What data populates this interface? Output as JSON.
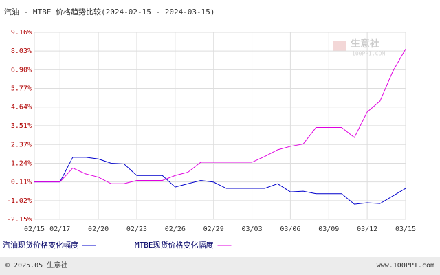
{
  "chart_data": {
    "type": "line",
    "title": "汽油 - MTBE 价格趋势比较(2024-02-15 - 2024-03-15)",
    "x": [
      "02/15",
      "02/16",
      "02/17",
      "02/18",
      "02/19",
      "02/20",
      "02/21",
      "02/22",
      "02/23",
      "02/24",
      "02/25",
      "02/26",
      "02/27",
      "02/28",
      "02/29",
      "03/01",
      "03/02",
      "03/03",
      "03/04",
      "03/05",
      "03/06",
      "03/07",
      "03/08",
      "03/09",
      "03/10",
      "03/11",
      "03/12",
      "03/13",
      "03/14",
      "03/15"
    ],
    "xticks": [
      "02/15",
      "02/17",
      "02/20",
      "02/23",
      "02/26",
      "02/29",
      "03/03",
      "03/06",
      "03/09",
      "03/12",
      "03/15"
    ],
    "ylim": [
      -2.15,
      9.16
    ],
    "yticks": [
      {
        "value": -2.15,
        "label": "-2.15%"
      },
      {
        "value": -1.02,
        "label": "-1.02%"
      },
      {
        "value": 0.11,
        "label": "0.11%"
      },
      {
        "value": 1.24,
        "label": "1.24%"
      },
      {
        "value": 2.37,
        "label": "2.37%"
      },
      {
        "value": 3.51,
        "label": "3.51%"
      },
      {
        "value": 4.64,
        "label": "4.64%"
      },
      {
        "value": 5.77,
        "label": "5.77%"
      },
      {
        "value": 6.9,
        "label": "6.90%"
      },
      {
        "value": 8.03,
        "label": "8.03%"
      },
      {
        "value": 9.16,
        "label": "9.16%"
      }
    ],
    "grid": true,
    "series": [
      {
        "name": "汽油现货价格变化幅度",
        "color": "#0000cc",
        "values": [
          0.11,
          0.11,
          0.11,
          1.6,
          1.6,
          1.5,
          1.24,
          1.2,
          0.5,
          0.5,
          0.5,
          -0.2,
          0.0,
          0.2,
          0.1,
          -0.28,
          -0.28,
          -0.28,
          -0.28,
          0.0,
          -0.49,
          -0.45,
          -0.6,
          -0.6,
          -0.6,
          -1.24,
          -1.15,
          -1.2,
          -0.74,
          -0.28
        ]
      },
      {
        "name": "MTBE现货价格变化幅度",
        "color": "#e000e0",
        "values": [
          0.11,
          0.11,
          0.11,
          0.95,
          0.6,
          0.4,
          0.0,
          0.0,
          0.2,
          0.2,
          0.2,
          0.5,
          0.7,
          1.3,
          1.3,
          1.3,
          1.3,
          1.3,
          1.65,
          2.05,
          2.26,
          2.4,
          3.4,
          3.4,
          3.4,
          2.8,
          4.34,
          5.0,
          6.8,
          8.15
        ]
      }
    ]
  },
  "watermark": {
    "name": "生意社",
    "site": "100PPI.COM"
  },
  "footer": {
    "left": "© 2025.05 生意社",
    "right": "www.100PPI.com"
  }
}
